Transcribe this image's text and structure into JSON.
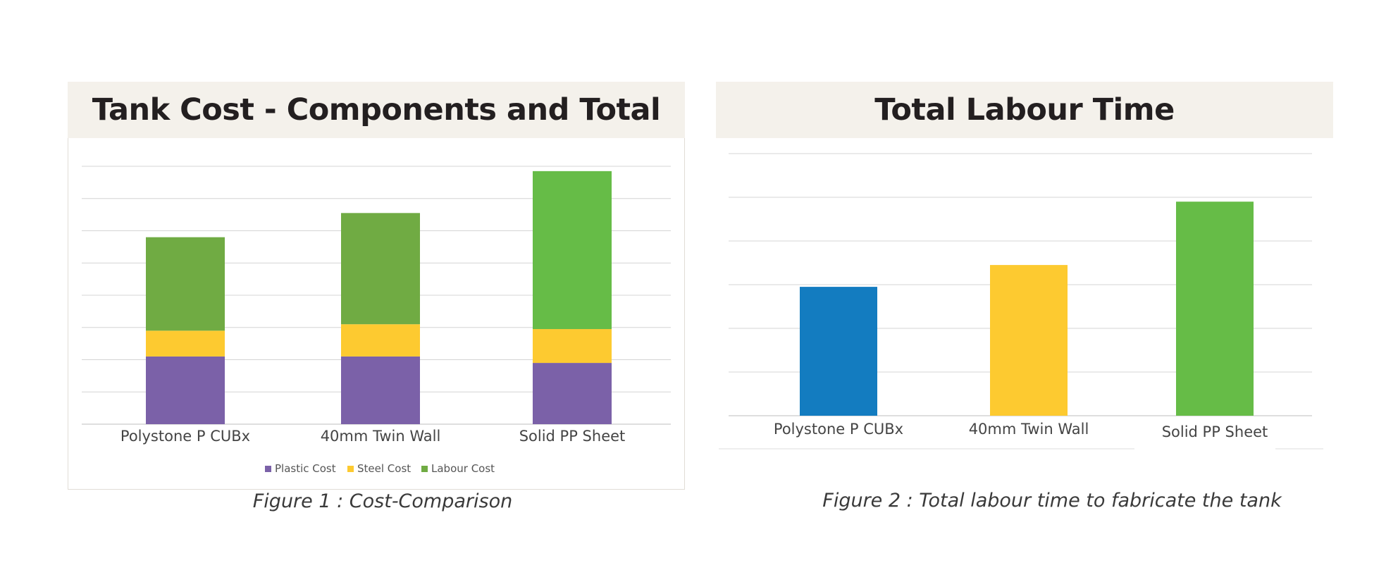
{
  "chart_data": [
    {
      "type": "bar",
      "stacked": true,
      "title": "Tank Cost - Components and Total",
      "caption": "Figure 1 : Cost-Comparison",
      "categories": [
        "Polystone P CUBx",
        "40mm Twin Wall",
        "Solid PP Sheet"
      ],
      "series": [
        {
          "name": "Plastic Cost",
          "color": "#7b61a8",
          "values": [
            2.1,
            2.1,
            1.9
          ]
        },
        {
          "name": "Steel Cost",
          "color": "#fdca30",
          "values": [
            0.8,
            1.0,
            1.05
          ]
        },
        {
          "name": "Labour Cost",
          "color": "#70ab43",
          "values": [
            2.9,
            3.45,
            4.9
          ]
        }
      ],
      "series_colors_per_category": {
        "Labour Cost": [
          "#70ab43",
          "#70ab43",
          "#66bc47"
        ]
      },
      "ylim": [
        0,
        8
      ],
      "gridlines": 8,
      "grid": true,
      "y_tick_labels": false,
      "legend": "bottom-center"
    },
    {
      "type": "bar",
      "title": "Total Labour Time",
      "caption": "Figure 2 : Total labour time to fabricate the tank",
      "categories": [
        "Polystone P CUBx",
        "40mm Twin Wall",
        "Solid PP Sheet"
      ],
      "values": [
        2.95,
        3.45,
        4.9
      ],
      "colors": [
        "#137cc0",
        "#fdca30",
        "#66bc47"
      ],
      "ylim": [
        0,
        6
      ],
      "gridlines": 6,
      "grid": true,
      "y_tick_labels": false
    }
  ]
}
